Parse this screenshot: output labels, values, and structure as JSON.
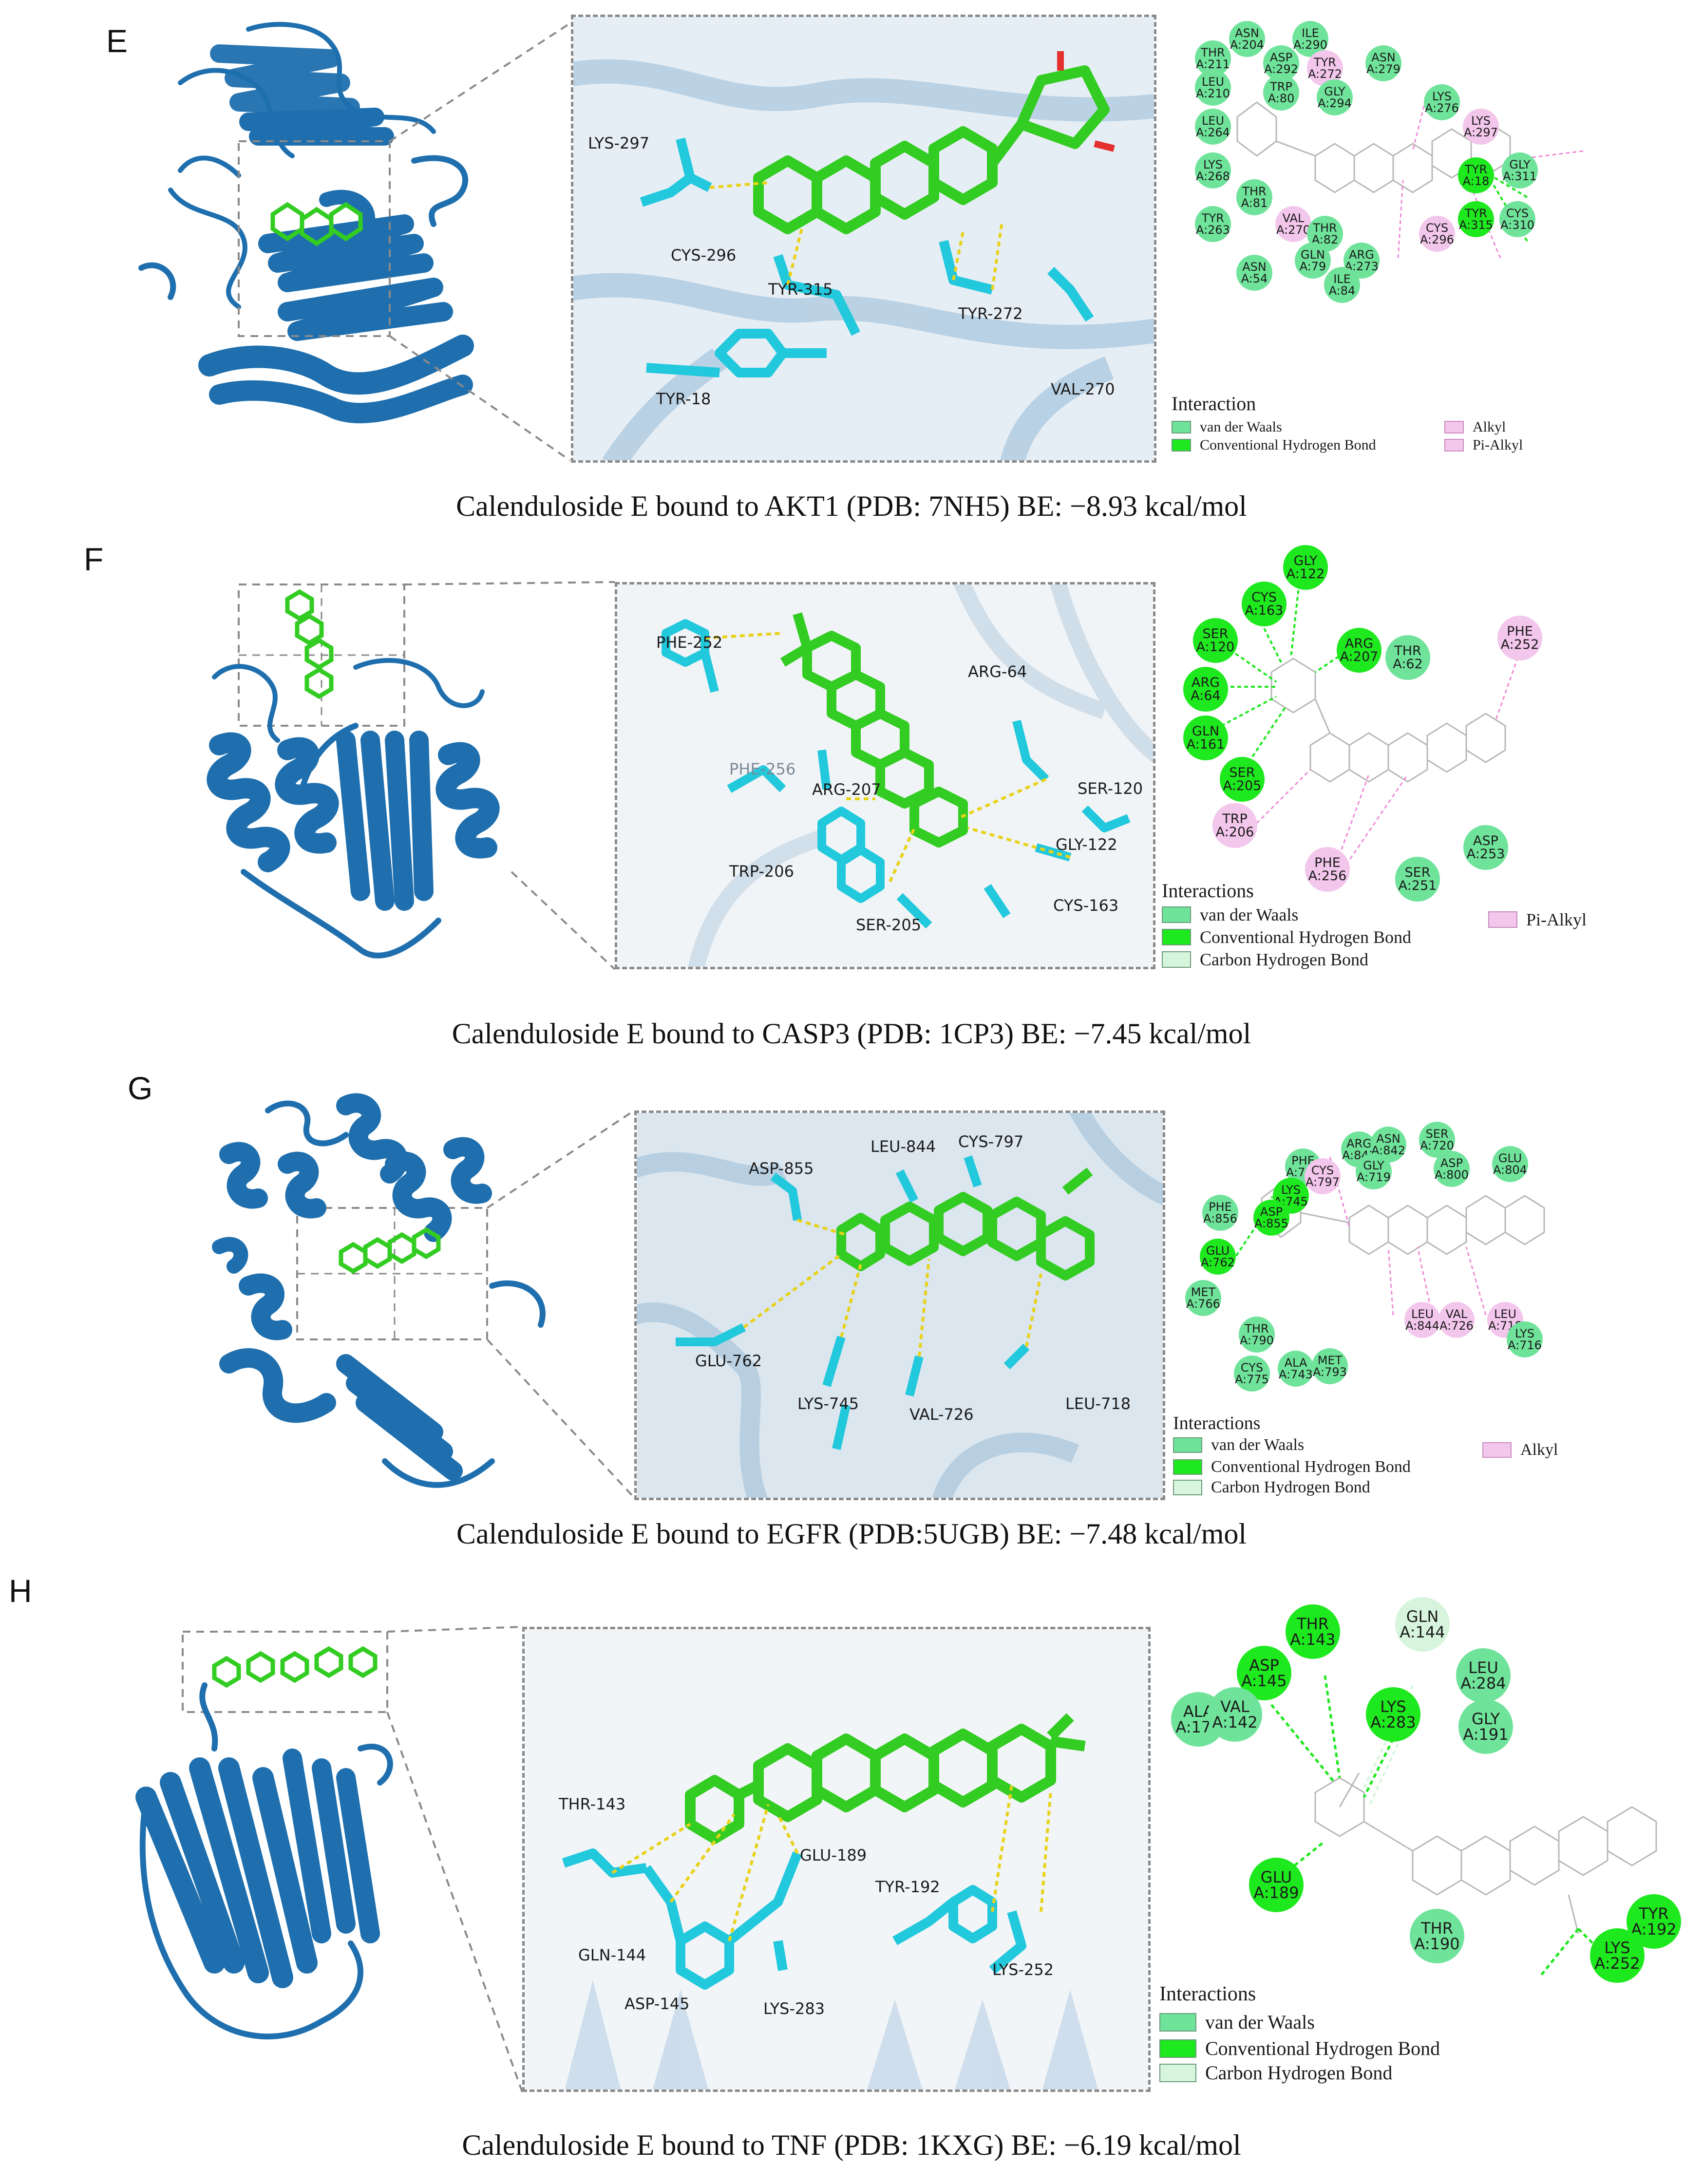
{
  "colors": {
    "protein": "#1f6fae",
    "ligand": "#33cc22",
    "residue": "#22c8dc",
    "hbond_line": "#e8d21a",
    "vdw": "#6fe39a",
    "conventional_hbond": "#1ee81e",
    "carbon_hbond": "#d6f5dc",
    "alkyl": "#f3c6ec"
  },
  "panels": [
    {
      "letter": "E",
      "caption": "Calenduloside E bound to AKT1 (PDB: 7NH5) BE: −8.93 kcal/mol",
      "pocket_residues": [
        "LYS-297",
        "CYS-296",
        "TYR-315",
        "TYR-272",
        "VAL-270",
        "TYR-18"
      ],
      "bubbles": [
        {
          "name": "ASN",
          "num": "A:204",
          "type": "vdw"
        },
        {
          "name": "ILE",
          "num": "A:290",
          "type": "vdw"
        },
        {
          "name": "THR",
          "num": "A:211",
          "type": "vdw"
        },
        {
          "name": "ASP",
          "num": "A:292",
          "type": "vdw"
        },
        {
          "name": "TYR",
          "num": "A:272",
          "type": "alkyl"
        },
        {
          "name": "ASN",
          "num": "A:279",
          "type": "vdw"
        },
        {
          "name": "LEU",
          "num": "A:210",
          "type": "vdw"
        },
        {
          "name": "TRP",
          "num": "A:80",
          "type": "vdw"
        },
        {
          "name": "GLY",
          "num": "A:294",
          "type": "vdw"
        },
        {
          "name": "LYS",
          "num": "A:276",
          "type": "vdw"
        },
        {
          "name": "LEU",
          "num": "A:264",
          "type": "vdw"
        },
        {
          "name": "LYS",
          "num": "A:297",
          "type": "alkyl"
        },
        {
          "name": "LYS",
          "num": "A:268",
          "type": "vdw"
        },
        {
          "name": "GLY",
          "num": "A:311",
          "type": "vdw"
        },
        {
          "name": "TYR",
          "num": "A:18",
          "type": "hbond"
        },
        {
          "name": "THR",
          "num": "A:81",
          "type": "vdw"
        },
        {
          "name": "TYR",
          "num": "A:263",
          "type": "vdw"
        },
        {
          "name": "VAL",
          "num": "A:270",
          "type": "alkyl"
        },
        {
          "name": "THR",
          "num": "A:82",
          "type": "vdw"
        },
        {
          "name": "TYR",
          "num": "A:315",
          "type": "hbond"
        },
        {
          "name": "CYS",
          "num": "A:310",
          "type": "vdw"
        },
        {
          "name": "CYS",
          "num": "A:296",
          "type": "alkyl"
        },
        {
          "name": "GLN",
          "num": "A:79",
          "type": "vdw"
        },
        {
          "name": "ARG",
          "num": "A:273",
          "type": "vdw"
        },
        {
          "name": "ASN",
          "num": "A:54",
          "type": "vdw"
        },
        {
          "name": "ILE",
          "num": "A:84",
          "type": "vdw"
        }
      ],
      "legend": {
        "title": "Interaction",
        "items": [
          {
            "label": "van der Waals",
            "type": "vdw"
          },
          {
            "label": "Conventional Hydrogen Bond",
            "type": "hbond"
          },
          {
            "label": "Alkyl",
            "type": "alkyl"
          },
          {
            "label": "Pi-Alkyl",
            "type": "alkyl"
          }
        ]
      }
    },
    {
      "letter": "F",
      "caption": "Calenduloside E bound to CASP3 (PDB: 1CP3) BE: −7.45 kcal/mol",
      "pocket_residues": [
        "PHE-252",
        "ARG-64",
        "PHE-256",
        "ARG-207",
        "SER-120",
        "GLY-122",
        "TRP-206",
        "CYS-163",
        "SER-205"
      ],
      "bubbles": [
        {
          "name": "GLY",
          "num": "A:122",
          "type": "hbond"
        },
        {
          "name": "CYS",
          "num": "A:163",
          "type": "hbond"
        },
        {
          "name": "PHE",
          "num": "A:252",
          "type": "alkyl"
        },
        {
          "name": "SER",
          "num": "A:120",
          "type": "hbond"
        },
        {
          "name": "ARG",
          "num": "A:207",
          "type": "hbond"
        },
        {
          "name": "THR",
          "num": "A:62",
          "type": "vdw"
        },
        {
          "name": "ARG",
          "num": "A:64",
          "type": "hbond"
        },
        {
          "name": "GLN",
          "num": "A:161",
          "type": "hbond"
        },
        {
          "name": "SER",
          "num": "A:205",
          "type": "hbond"
        },
        {
          "name": "TRP",
          "num": "A:206",
          "type": "alkyl"
        },
        {
          "name": "ASP",
          "num": "A:253",
          "type": "vdw"
        },
        {
          "name": "PHE",
          "num": "A:256",
          "type": "alkyl"
        },
        {
          "name": "SER",
          "num": "A:251",
          "type": "vdw"
        }
      ],
      "legend": {
        "title": "Interactions",
        "items": [
          {
            "label": "van der Waals",
            "type": "vdw"
          },
          {
            "label": "Conventional Hydrogen Bond",
            "type": "hbond"
          },
          {
            "label": "Carbon Hydrogen Bond",
            "type": "chbond"
          },
          {
            "label": "Pi-Alkyl",
            "type": "alkyl"
          }
        ]
      }
    },
    {
      "letter": "G",
      "caption": "Calenduloside E bound to EGFR (PDB:5UGB) BE: −7.48 kcal/mol",
      "pocket_residues": [
        "ASP-855",
        "LEU-844",
        "CYS-797",
        "GLU-762",
        "LYS-745",
        "VAL-726",
        "LEU-718"
      ],
      "bubbles": [
        {
          "name": "ARG",
          "num": "A:841",
          "type": "vdw"
        },
        {
          "name": "ASN",
          "num": "A:842",
          "type": "vdw"
        },
        {
          "name": "SER",
          "num": "A:720",
          "type": "vdw"
        },
        {
          "name": "PHE",
          "num": "A:723",
          "type": "vdw"
        },
        {
          "name": "CYS",
          "num": "A:797",
          "type": "alkyl"
        },
        {
          "name": "GLY",
          "num": "A:719",
          "type": "vdw"
        },
        {
          "name": "ASP",
          "num": "A:800",
          "type": "vdw"
        },
        {
          "name": "GLU",
          "num": "A:804",
          "type": "vdw"
        },
        {
          "name": "PHE",
          "num": "A:856",
          "type": "vdw"
        },
        {
          "name": "LYS",
          "num": "A:745",
          "type": "hbond"
        },
        {
          "name": "ASP",
          "num": "A:855",
          "type": "hbond"
        },
        {
          "name": "GLU",
          "num": "A:762",
          "type": "hbond"
        },
        {
          "name": "MET",
          "num": "A:766",
          "type": "vdw"
        },
        {
          "name": "LEU",
          "num": "A:844",
          "type": "alkyl"
        },
        {
          "name": "VAL",
          "num": "A:726",
          "type": "alkyl"
        },
        {
          "name": "LEU",
          "num": "A:718",
          "type": "alkyl"
        },
        {
          "name": "LYS",
          "num": "A:716",
          "type": "vdw"
        },
        {
          "name": "THR",
          "num": "A:790",
          "type": "vdw"
        },
        {
          "name": "CYS",
          "num": "A:775",
          "type": "vdw"
        },
        {
          "name": "ALA",
          "num": "A:743",
          "type": "vdw"
        },
        {
          "name": "MET",
          "num": "A:793",
          "type": "vdw"
        }
      ],
      "legend": {
        "title": "Interactions",
        "items": [
          {
            "label": "van der Waals",
            "type": "vdw"
          },
          {
            "label": "Conventional Hydrogen Bond",
            "type": "hbond"
          },
          {
            "label": "Carbon Hydrogen Bond",
            "type": "chbond"
          },
          {
            "label": "Alkyl",
            "type": "alkyl"
          }
        ]
      }
    },
    {
      "letter": "H",
      "caption": "Calenduloside E bound to TNF (PDB: 1KXG) BE: −6.19 kcal/mol",
      "pocket_residues": [
        "THR-143",
        "GLU-189",
        "GLN-144",
        "TYR-192",
        "LYS-252",
        "ASP-145",
        "LYS-283"
      ],
      "bubbles": [
        {
          "name": "THR",
          "num": "A:143",
          "type": "hbond"
        },
        {
          "name": "GLN",
          "num": "A:144",
          "type": "chbond"
        },
        {
          "name": "ASP",
          "num": "A:145",
          "type": "hbond"
        },
        {
          "name": "LEU",
          "num": "A:284",
          "type": "vdw"
        },
        {
          "name": "ALA",
          "num": "A:177",
          "type": "vdw"
        },
        {
          "name": "VAL",
          "num": "A:142",
          "type": "vdw"
        },
        {
          "name": "LYS",
          "num": "A:283",
          "type": "hbond"
        },
        {
          "name": "GLY",
          "num": "A:191",
          "type": "vdw"
        },
        {
          "name": "GLU",
          "num": "A:189",
          "type": "hbond"
        },
        {
          "name": "THR",
          "num": "A:190",
          "type": "vdw"
        },
        {
          "name": "TYR",
          "num": "A:192",
          "type": "hbond"
        },
        {
          "name": "LYS",
          "num": "A:252",
          "type": "hbond"
        }
      ],
      "legend": {
        "title": "Interactions",
        "items": [
          {
            "label": "van der Waals",
            "type": "vdw"
          },
          {
            "label": "Conventional Hydrogen Bond",
            "type": "hbond"
          },
          {
            "label": "Carbon Hydrogen Bond",
            "type": "chbond"
          }
        ]
      }
    }
  ]
}
